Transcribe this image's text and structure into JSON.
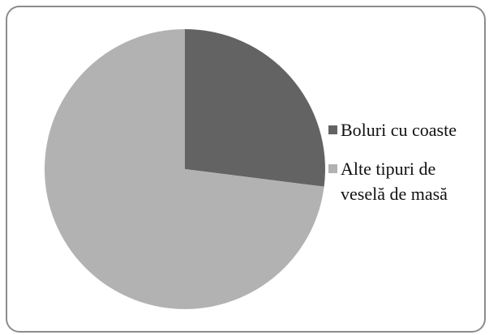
{
  "chart_data": {
    "type": "pie",
    "categories": [
      "Boluri cu coaste",
      "Alte tipuri de veselă de masă"
    ],
    "values": [
      27,
      73
    ],
    "colors": [
      "#636363",
      "#b2b2b2"
    ]
  }
}
